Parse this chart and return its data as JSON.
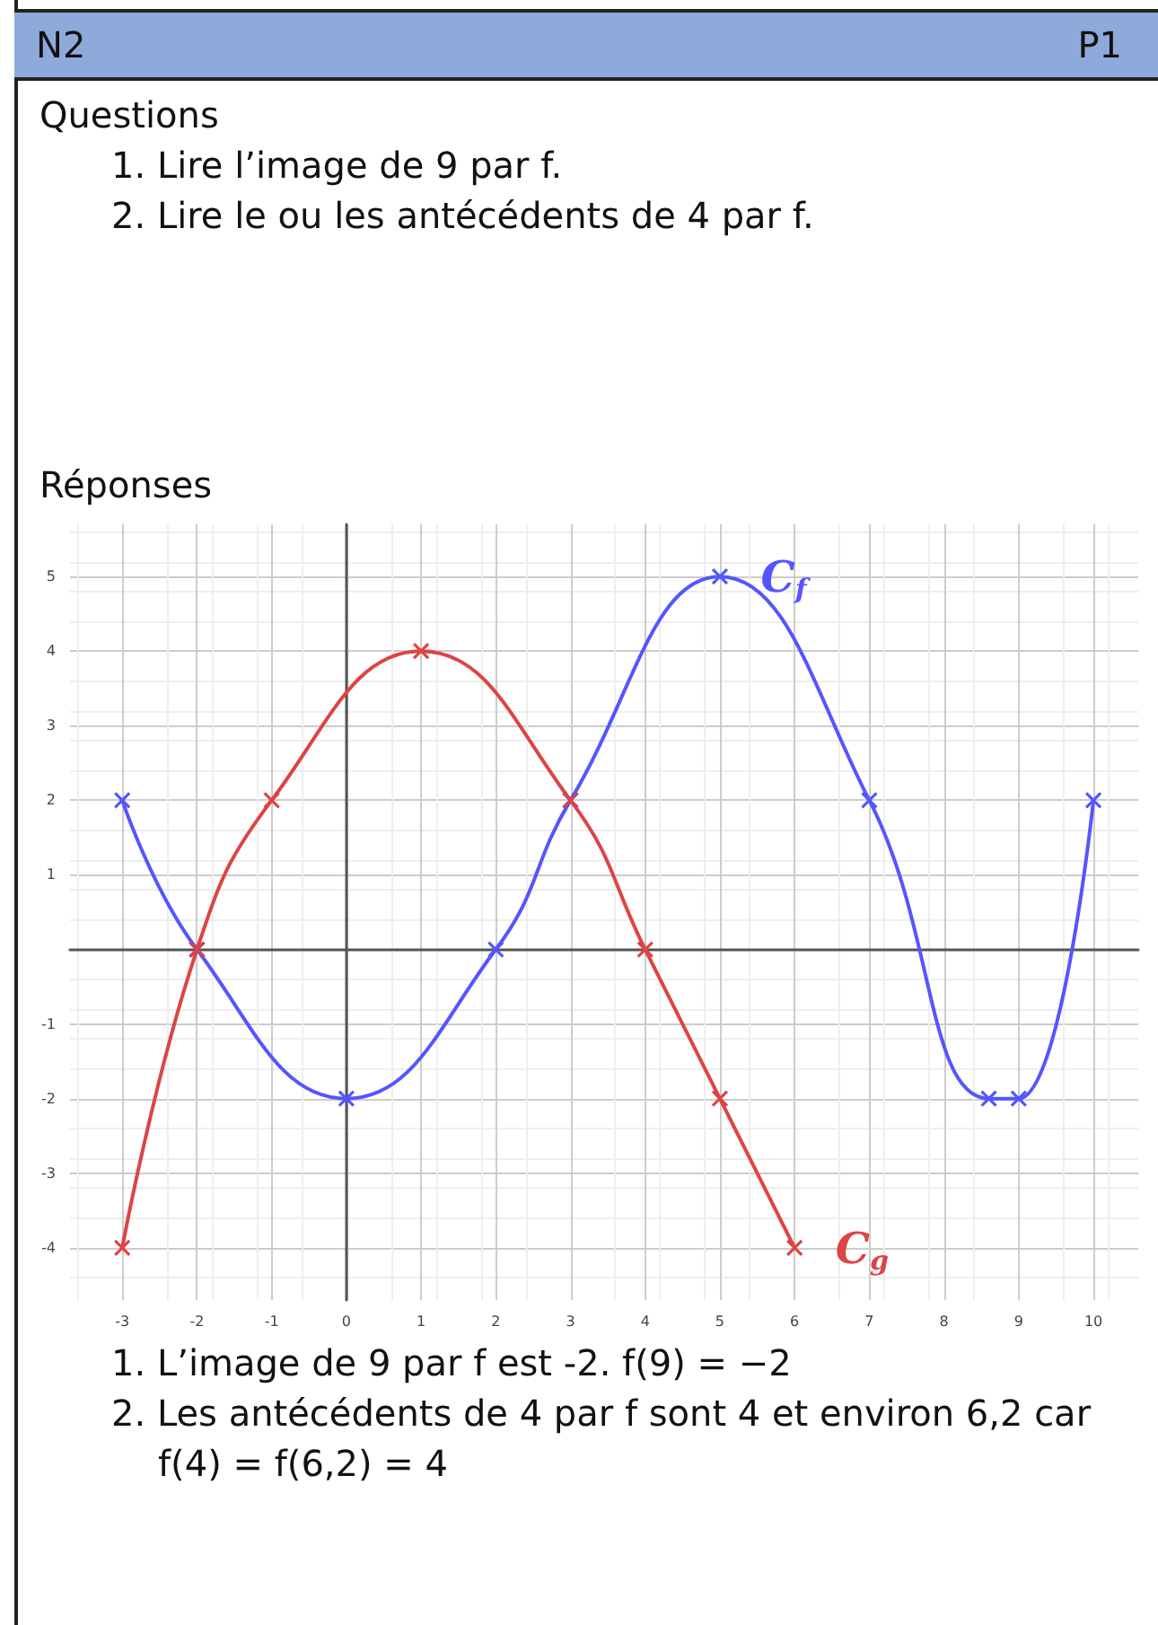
{
  "chart_data": {
    "type": "line",
    "annotations": [
      "N2",
      "P1",
      "Questions",
      "1.  Lire l’image de 9 par f.",
      "2.  Lire le ou les antécédents de 4 par f.",
      "Réponses",
      "1.  L’image de 9 par f est -2. f(9) = −2",
      "2.  Les antécédents de 4 par f sont 4 et environ 6,2 car f(4) = f(6,2) = 4"
    ],
    "series": [
      {
        "name": "C$_{f}$",
        "color": "#5555ff",
        "x": [
          -3,
          -2,
          0,
          2,
          3,
          5,
          7,
          8.6,
          9,
          10
        ],
        "values": [
          2,
          0,
          -2,
          0,
          2,
          5,
          2,
          -2,
          -2,
          2
        ]
      },
      {
        "name": "C$_{g}$",
        "color": "#dd4444",
        "x": [
          -3,
          -2,
          -1,
          1,
          3,
          4,
          5,
          6
        ],
        "values": [
          -4,
          0,
          2,
          4,
          2,
          0,
          -2,
          -4
        ]
      }
    ],
    "xlim": [
      -3.7,
      10.6
    ],
    "ylim": [
      -4.7,
      5.7
    ],
    "xticks": [
      -3,
      -2,
      -1,
      0,
      1,
      2,
      3,
      4,
      5,
      6,
      7,
      8,
      9,
      10
    ],
    "yticks": [
      -4,
      -3,
      -2,
      -1,
      1,
      2,
      3,
      4,
      5
    ],
    "grid": true,
    "legend": false,
    "marker": "cross",
    "line_style": "solid"
  }
}
